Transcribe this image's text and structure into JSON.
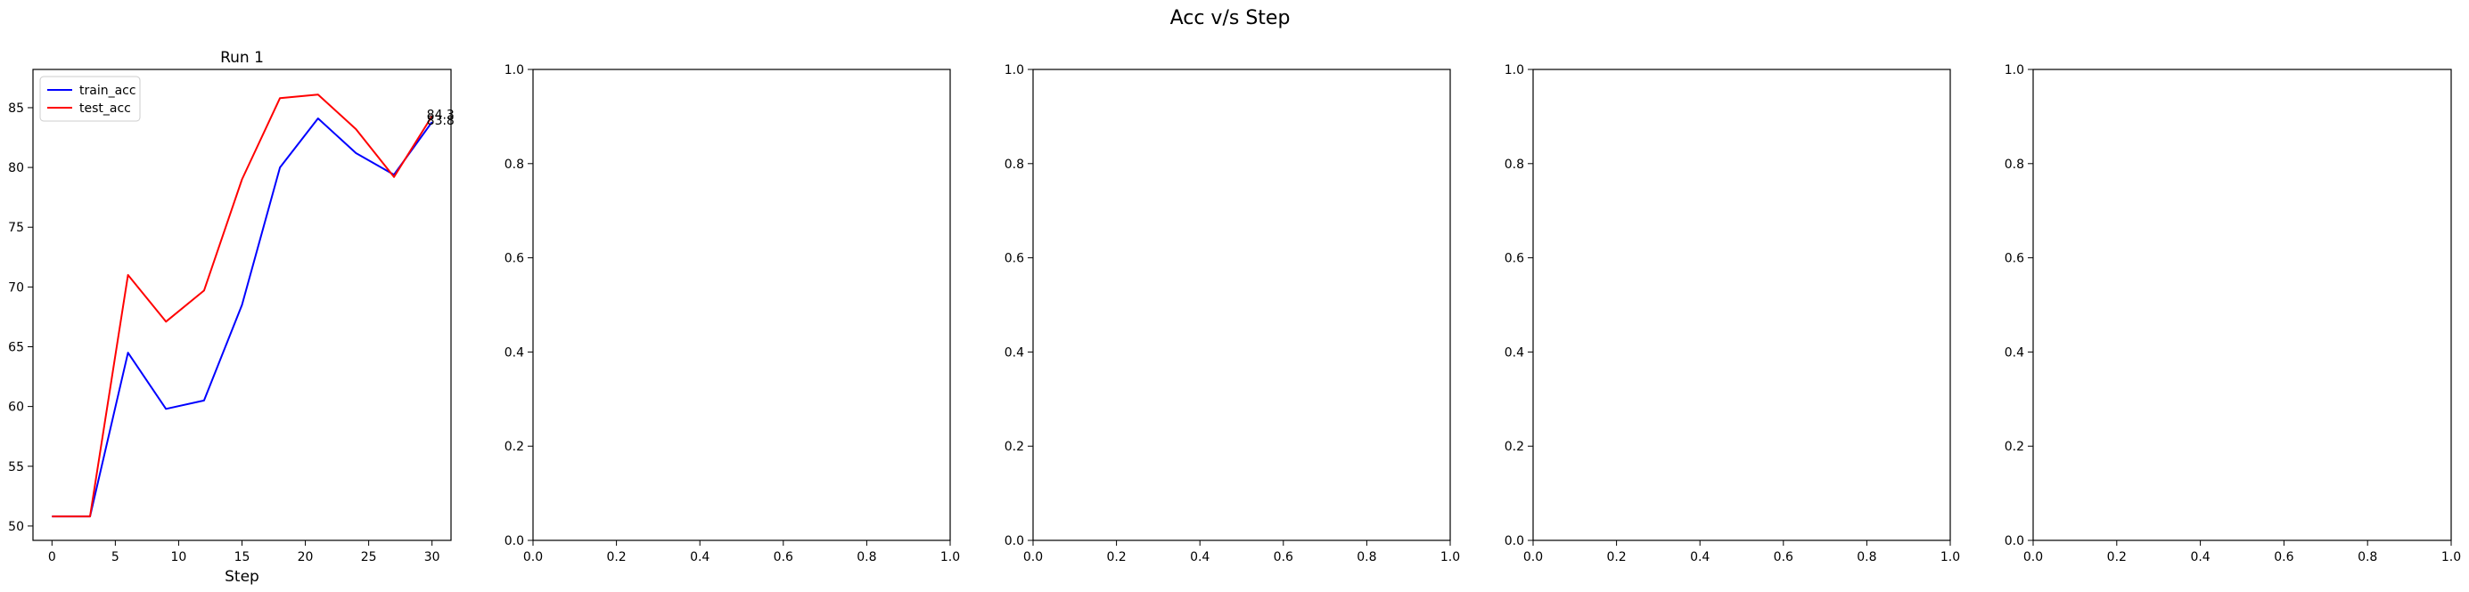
{
  "figure": {
    "suptitle": "Acc v/s Step"
  },
  "chart_data": [
    {
      "type": "line",
      "title": "Run 1",
      "xlabel": "Step",
      "ylabel": "",
      "xlim": [
        -1.5,
        31.5
      ],
      "ylim": [
        48.8,
        88.2
      ],
      "xticks": [
        0,
        5,
        10,
        15,
        20,
        25,
        30
      ],
      "yticks": [
        50,
        55,
        60,
        65,
        70,
        75,
        80,
        85
      ],
      "x": [
        0,
        3,
        6,
        9,
        12,
        15,
        18,
        21,
        24,
        27,
        30
      ],
      "series": [
        {
          "name": "train_acc",
          "color": "#0000ff",
          "values": [
            50.8,
            50.8,
            64.5,
            59.8,
            60.5,
            68.5,
            80.0,
            84.1,
            81.2,
            79.4,
            83.8
          ]
        },
        {
          "name": "test_acc",
          "color": "#ff0000",
          "values": [
            50.8,
            50.8,
            71.0,
            67.1,
            69.7,
            79.0,
            85.8,
            86.1,
            83.2,
            79.2,
            84.3
          ]
        }
      ],
      "annotations": [
        {
          "text": "84.3",
          "x": 30,
          "y": 84.3
        },
        {
          "text": "83.8",
          "x": 30,
          "y": 83.8
        }
      ],
      "legend": "upper left",
      "grid": false
    },
    {
      "type": "line",
      "title": "",
      "xlabel": "",
      "ylabel": "",
      "xlim": [
        0,
        1
      ],
      "ylim": [
        0,
        1
      ],
      "xticks": [
        0.0,
        0.2,
        0.4,
        0.6,
        0.8,
        1.0
      ],
      "yticks": [
        0.0,
        0.2,
        0.4,
        0.6,
        0.8,
        1.0
      ],
      "series": []
    },
    {
      "type": "line",
      "title": "",
      "xlabel": "",
      "ylabel": "",
      "xlim": [
        0,
        1
      ],
      "ylim": [
        0,
        1
      ],
      "xticks": [
        0.0,
        0.2,
        0.4,
        0.6,
        0.8,
        1.0
      ],
      "yticks": [
        0.0,
        0.2,
        0.4,
        0.6,
        0.8,
        1.0
      ],
      "series": []
    },
    {
      "type": "line",
      "title": "",
      "xlabel": "",
      "ylabel": "",
      "xlim": [
        0,
        1
      ],
      "ylim": [
        0,
        1
      ],
      "xticks": [
        0.0,
        0.2,
        0.4,
        0.6,
        0.8,
        1.0
      ],
      "yticks": [
        0.0,
        0.2,
        0.4,
        0.6,
        0.8,
        1.0
      ],
      "series": []
    },
    {
      "type": "line",
      "title": "",
      "xlabel": "",
      "ylabel": "",
      "xlim": [
        0,
        1
      ],
      "ylim": [
        0,
        1
      ],
      "xticks": [
        0.0,
        0.2,
        0.4,
        0.6,
        0.8,
        1.0
      ],
      "yticks": [
        0.0,
        0.2,
        0.4,
        0.6,
        0.8,
        1.0
      ],
      "series": []
    }
  ]
}
